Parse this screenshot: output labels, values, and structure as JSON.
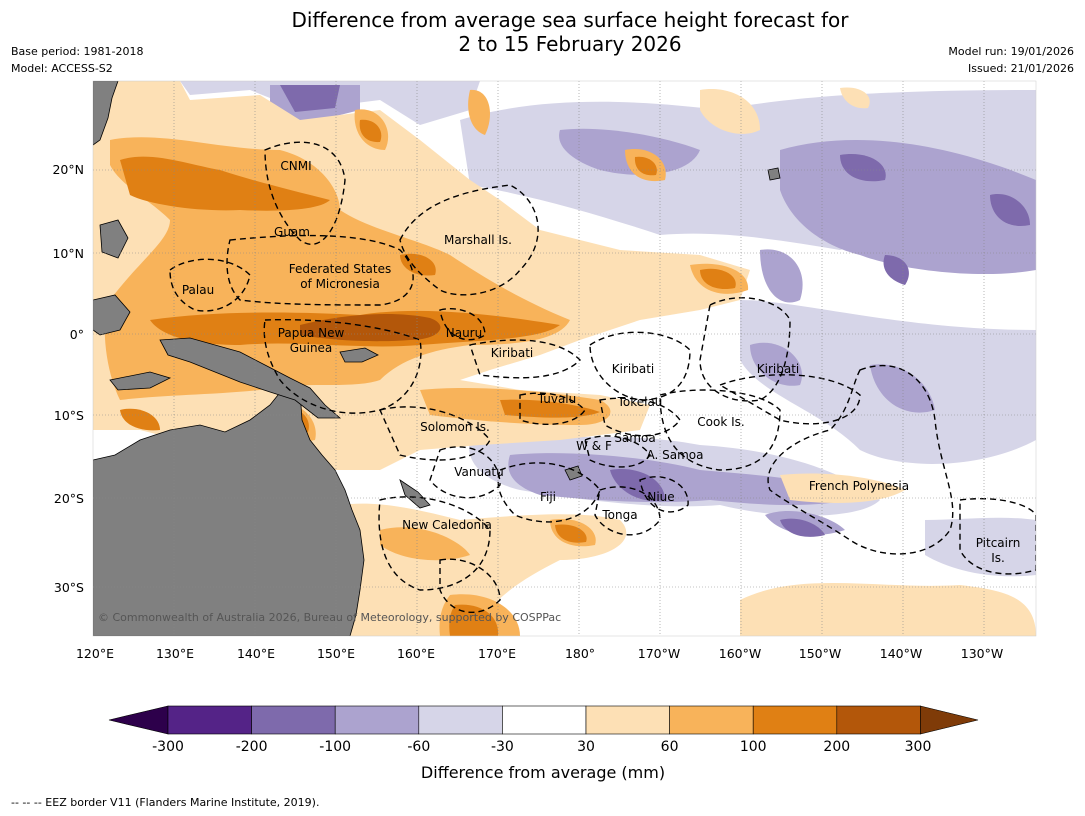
{
  "title": {
    "line1": "Difference from average sea surface height forecast for",
    "line2": "2 to 15 February 2026"
  },
  "meta_left": {
    "base_period": "Base period: 1981-2018",
    "model": "Model: ACCESS-S2"
  },
  "meta_right": {
    "model_run": "Model run: 19/01/2026",
    "issued": "Issued: 21/01/2026"
  },
  "map": {
    "lon_labels": [
      "120°E",
      "130°E",
      "140°E",
      "150°E",
      "160°E",
      "170°E",
      "180°",
      "170°W",
      "160°W",
      "150°W",
      "140°W",
      "130°W"
    ],
    "lat_labels": [
      "20°N",
      "10°N",
      "0°",
      "10°S",
      "20°S",
      "30°S"
    ],
    "regions": {
      "cnmi": "CNMI",
      "guam": "Guam",
      "marshall": "Marshall Is.",
      "fsm1": "Federated States",
      "fsm2": "of Micronesia",
      "palau": "Palau",
      "png1": "Papua New",
      "png2": "Guinea",
      "nauru": "Nauru",
      "kiribati_w": "Kiribati",
      "kiribati_c": "Kiribati",
      "kiribati_e": "Kiribati",
      "tuvalu": "Tuvalu",
      "tokelau": "Tokelau",
      "cook": "Cook Is.",
      "solomon": "Solomon Is.",
      "samoa": "Samoa",
      "wf": "W & F",
      "asamoa": "A. Samoa",
      "vanuatu": "Vanuatu",
      "fiji": "Fiji",
      "niue": "Niue",
      "tonga": "Tonga",
      "frpoly": "French Polynesia",
      "newcal": "New Caledonia",
      "pitcairn1": "Pitcairn",
      "pitcairn2": "Is."
    },
    "copyright": "© Commonwealth of Australia 2026, Bureau of Meteorology, supported by COSPPac",
    "colors": {
      "land": "#808080",
      "grid": "#888888",
      "eez": "#000000"
    }
  },
  "colorbar": {
    "ticks": [
      "-300",
      "-200",
      "-100",
      "-60",
      "-30",
      "30",
      "60",
      "100",
      "200",
      "300"
    ],
    "colors": [
      "#542387",
      "#7e6aac",
      "#aca3cf",
      "#d6d5e8",
      "#ffffff",
      "#fde0b5",
      "#f8b35a",
      "#e08014",
      "#b3570a"
    ],
    "under_color": "#2d004b",
    "over_color": "#7f3b08",
    "label": "Difference from average (mm)"
  },
  "footer": "--  --  -- EEZ border V11 (Flanders Marine Institute, 2019)."
}
